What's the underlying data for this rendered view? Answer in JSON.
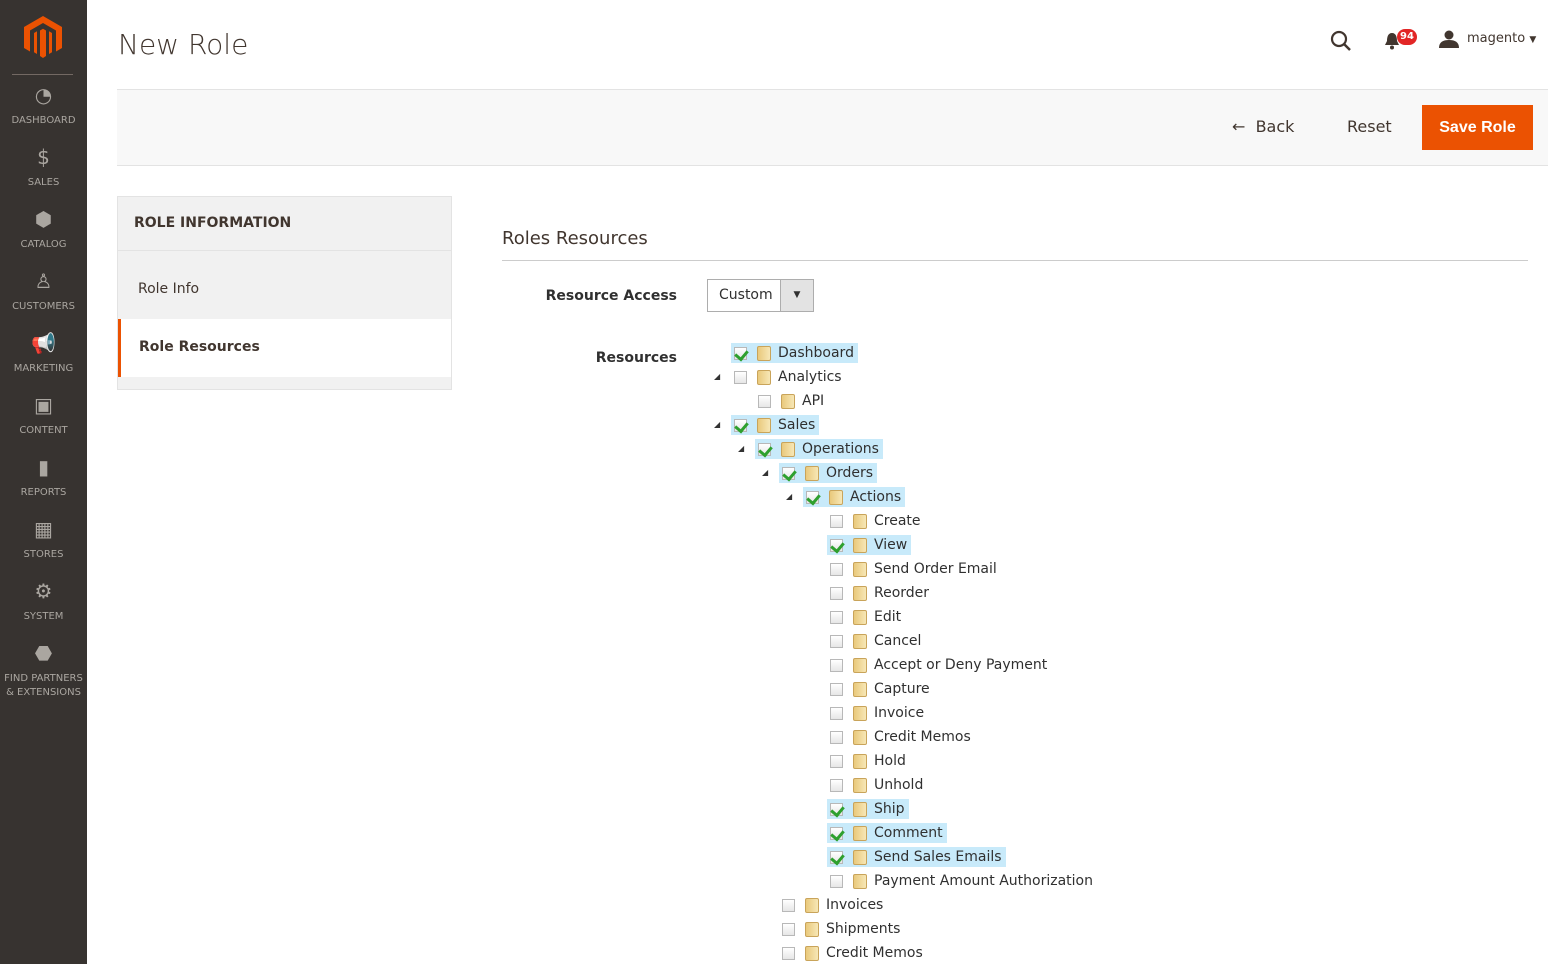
{
  "sidebar": {
    "items": [
      {
        "label": "DASHBOARD",
        "icon": "dashboard-icon"
      },
      {
        "label": "SALES",
        "icon": "dollar-icon"
      },
      {
        "label": "CATALOG",
        "icon": "box-icon"
      },
      {
        "label": "CUSTOMERS",
        "icon": "person-icon"
      },
      {
        "label": "MARKETING",
        "icon": "megaphone-icon"
      },
      {
        "label": "CONTENT",
        "icon": "layout-icon"
      },
      {
        "label": "REPORTS",
        "icon": "bar-chart-icon"
      },
      {
        "label": "STORES",
        "icon": "store-icon"
      },
      {
        "label": "SYSTEM",
        "icon": "gear-icon"
      },
      {
        "label": "FIND PARTNERS & EXTENSIONS",
        "icon": "cubes-icon"
      }
    ]
  },
  "header": {
    "title": "New Role",
    "notifications": "94",
    "user": "magento"
  },
  "actions": {
    "back": "Back",
    "reset": "Reset",
    "save": "Save Role"
  },
  "tabs": {
    "heading": "ROLE INFORMATION",
    "items": [
      {
        "label": "Role Info",
        "active": false
      },
      {
        "label": "Role Resources",
        "active": true
      }
    ]
  },
  "main": {
    "section_title": "Roles Resources",
    "resource_access_label": "Resource Access",
    "resource_access_value": "Custom",
    "resources_label": "Resources",
    "tree": [
      {
        "label": "Dashboard",
        "depth": 0,
        "checked": true,
        "toggle": false
      },
      {
        "label": "Analytics",
        "depth": 0,
        "checked": false,
        "toggle": true
      },
      {
        "label": "API",
        "depth": 1,
        "checked": false,
        "toggle": false
      },
      {
        "label": "Sales",
        "depth": 0,
        "checked": true,
        "toggle": true
      },
      {
        "label": "Operations",
        "depth": 1,
        "checked": true,
        "toggle": true
      },
      {
        "label": "Orders",
        "depth": 2,
        "checked": true,
        "toggle": true
      },
      {
        "label": "Actions",
        "depth": 3,
        "checked": true,
        "toggle": true
      },
      {
        "label": "Create",
        "depth": 4,
        "checked": false,
        "toggle": false
      },
      {
        "label": "View",
        "depth": 4,
        "checked": true,
        "toggle": false
      },
      {
        "label": "Send Order Email",
        "depth": 4,
        "checked": false,
        "toggle": false
      },
      {
        "label": "Reorder",
        "depth": 4,
        "checked": false,
        "toggle": false
      },
      {
        "label": "Edit",
        "depth": 4,
        "checked": false,
        "toggle": false
      },
      {
        "label": "Cancel",
        "depth": 4,
        "checked": false,
        "toggle": false
      },
      {
        "label": "Accept or Deny Payment",
        "depth": 4,
        "checked": false,
        "toggle": false
      },
      {
        "label": "Capture",
        "depth": 4,
        "checked": false,
        "toggle": false
      },
      {
        "label": "Invoice",
        "depth": 4,
        "checked": false,
        "toggle": false
      },
      {
        "label": "Credit Memos",
        "depth": 4,
        "checked": false,
        "toggle": false
      },
      {
        "label": "Hold",
        "depth": 4,
        "checked": false,
        "toggle": false
      },
      {
        "label": "Unhold",
        "depth": 4,
        "checked": false,
        "toggle": false
      },
      {
        "label": "Ship",
        "depth": 4,
        "checked": true,
        "toggle": false
      },
      {
        "label": "Comment",
        "depth": 4,
        "checked": true,
        "toggle": false
      },
      {
        "label": "Send Sales Emails",
        "depth": 4,
        "checked": true,
        "toggle": false
      },
      {
        "label": "Payment Amount Authorization",
        "depth": 4,
        "checked": false,
        "toggle": false
      },
      {
        "label": "Invoices",
        "depth": 2,
        "checked": false,
        "toggle": false
      },
      {
        "label": "Shipments",
        "depth": 2,
        "checked": false,
        "toggle": false
      },
      {
        "label": "Credit Memos",
        "depth": 2,
        "checked": false,
        "toggle": false
      }
    ]
  },
  "colors": {
    "accent": "#eb5202",
    "sidebar": "#373330",
    "highlight": "#c8eafa"
  }
}
